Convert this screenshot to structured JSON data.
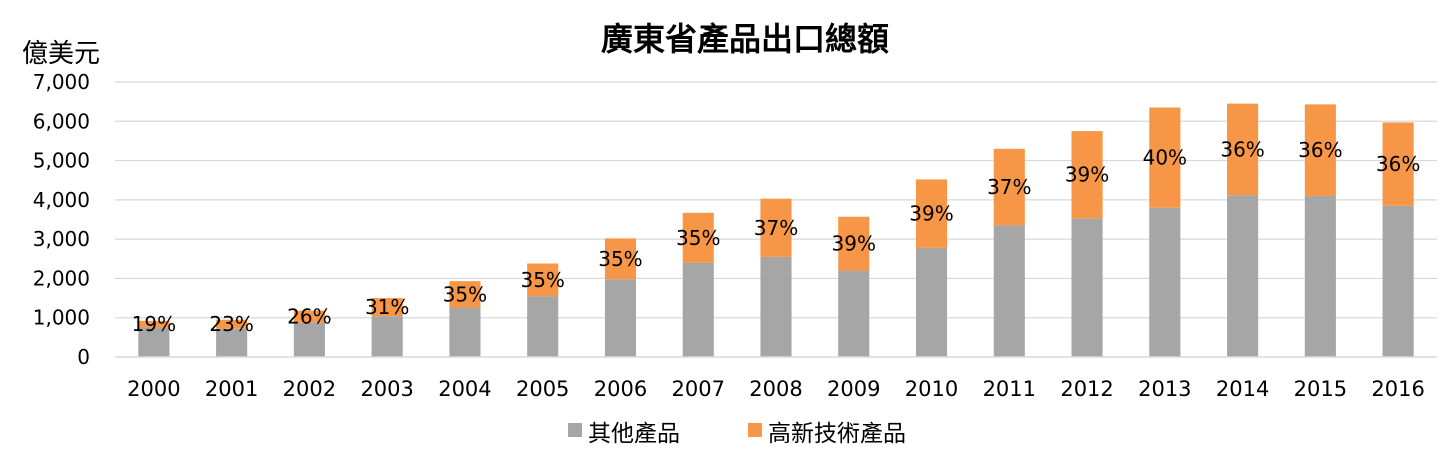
{
  "chart_data": {
    "type": "bar",
    "stacked": true,
    "title": "廣東省產品出口總額",
    "unit_label": "億美元",
    "categories": [
      "2000",
      "2001",
      "2002",
      "2003",
      "2004",
      "2005",
      "2006",
      "2007",
      "2008",
      "2009",
      "2010",
      "2011",
      "2012",
      "2013",
      "2014",
      "2015",
      "2016"
    ],
    "series": [
      {
        "name": "其他產品",
        "color": "#a6a6a6",
        "values": [
          750,
          720,
          870,
          1040,
          1260,
          1550,
          1980,
          2400,
          2550,
          2200,
          2780,
          3350,
          3530,
          3800,
          4120,
          4100,
          3850
        ]
      },
      {
        "name": "高新技術產品",
        "color": "#f79646",
        "values": [
          170,
          230,
          310,
          460,
          670,
          830,
          1040,
          1270,
          1480,
          1370,
          1740,
          1950,
          2220,
          2550,
          2330,
          2330,
          2120
        ]
      }
    ],
    "data_labels": [
      "19%",
      "23%",
      "26%",
      "31%",
      "35%",
      "35%",
      "35%",
      "35%",
      "37%",
      "39%",
      "39%",
      "37%",
      "39%",
      "40%",
      "36%",
      "36%",
      "36%"
    ],
    "y_ticks": [
      "0",
      "1,000",
      "2,000",
      "3,000",
      "4,000",
      "5,000",
      "6,000",
      "7,000"
    ],
    "ylim": [
      0,
      7000
    ],
    "grid": true,
    "legend_position": "bottom"
  }
}
